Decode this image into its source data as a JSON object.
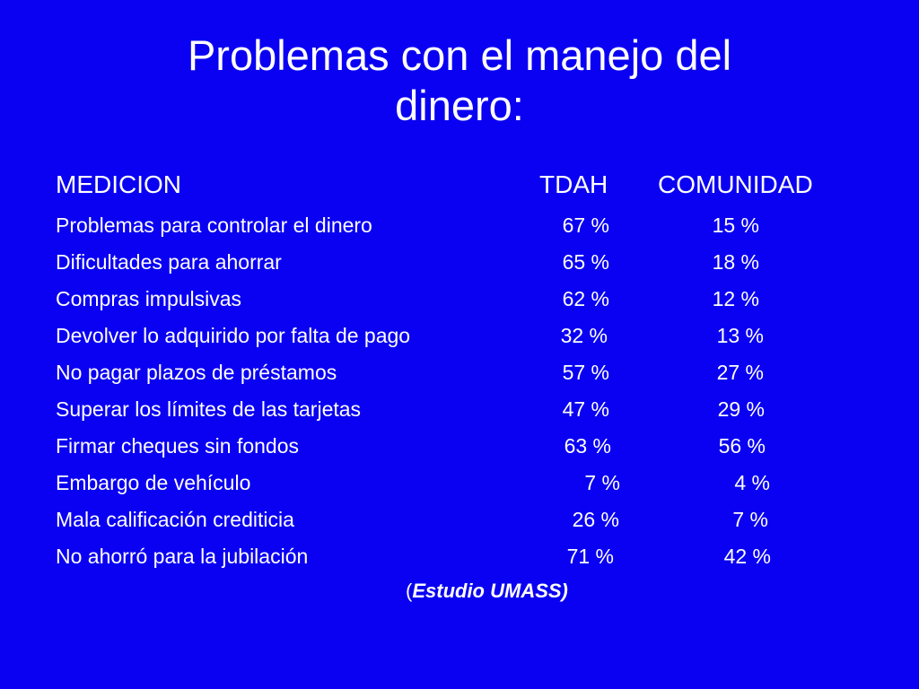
{
  "slide": {
    "title_line1": "Problemas con el manejo del",
    "title_line2": "dinero:",
    "headers": {
      "measure": "MEDICION",
      "tdah": "TDAH",
      "community": "COMUNIDAD"
    },
    "rows": [
      {
        "measure": "Problemas para controlar el dinero",
        "tdah": "67 %",
        "community": "15 %"
      },
      {
        "measure": "Dificultades para ahorrar",
        "tdah": "65 %",
        "community": "18 %"
      },
      {
        "measure": "Compras impulsivas",
        "tdah": "62 %",
        "community": "12 %"
      },
      {
        "measure": "Devolver lo adquirido por falta de pago",
        "tdah": "32 %",
        "community": "13 %"
      },
      {
        "measure": "No pagar plazos de préstamos",
        "tdah": "57 %",
        "community": "27 %"
      },
      {
        "measure": "Superar los límites de las tarjetas",
        "tdah": "47 %",
        "community": "29 %"
      },
      {
        "measure": "Firmar cheques sin fondos",
        "tdah": "63 %",
        "community": "56 %"
      },
      {
        "measure": "Embargo de vehículo",
        "tdah": "7 %",
        "community": "4 %"
      },
      {
        "measure": "Mala calificación crediticia",
        "tdah": "26 %",
        "community": "7 %"
      },
      {
        "measure": "No ahorró para la jubilación",
        "tdah": "71 %",
        "community": "42 %"
      }
    ],
    "source_open_paren": "(",
    "source_text": "Estudio UMASS)",
    "background_color": "#0A00F2",
    "text_color": "#FFFFFF"
  }
}
